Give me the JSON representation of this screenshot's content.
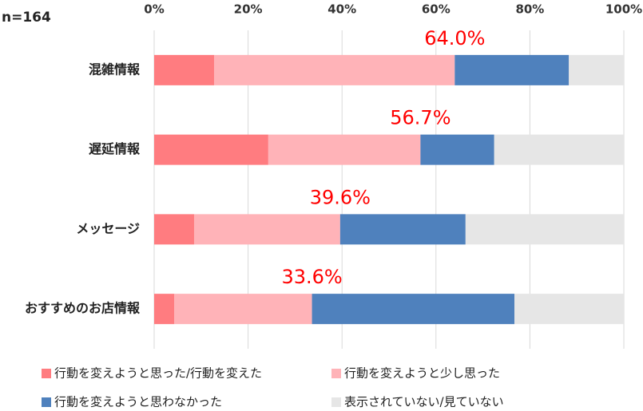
{
  "chart_data": {
    "type": "stacked-bar",
    "orientation": "horizontal",
    "note": "n=164",
    "categories": [
      "混雑情報",
      "遅延情報",
      "メッセージ",
      "おすすめのお店情報"
    ],
    "series": [
      {
        "name": "行動を変えようと思った/行動を変えた",
        "color": "#ff7c80",
        "values": [
          12.8,
          24.3,
          8.5,
          4.3
        ]
      },
      {
        "name": "行動を変えようと少し思った",
        "color": "#ffb3b8",
        "values": [
          51.2,
          32.4,
          31.1,
          29.3
        ]
      },
      {
        "name": "行動を変えようと思わなかった",
        "color": "#4f81bd",
        "values": [
          24.3,
          15.7,
          26.7,
          43.1
        ]
      },
      {
        "name": "表示されていない/見ていない",
        "color": "#e6e6e6",
        "values": [
          11.7,
          27.6,
          33.7,
          23.3
        ]
      }
    ],
    "annotations": [
      "64.0%",
      "56.7%",
      "39.6%",
      "33.6%"
    ],
    "annotation_color": "#ff0000",
    "xlim": [
      0,
      100
    ],
    "xticks": [
      {
        "value": 0,
        "label": "0%"
      },
      {
        "value": 20,
        "label": "20%"
      },
      {
        "value": 40,
        "label": "40%"
      },
      {
        "value": 60,
        "label": "60%"
      },
      {
        "value": 80,
        "label": "80%"
      },
      {
        "value": 100,
        "label": "100%"
      }
    ],
    "grid": true
  }
}
